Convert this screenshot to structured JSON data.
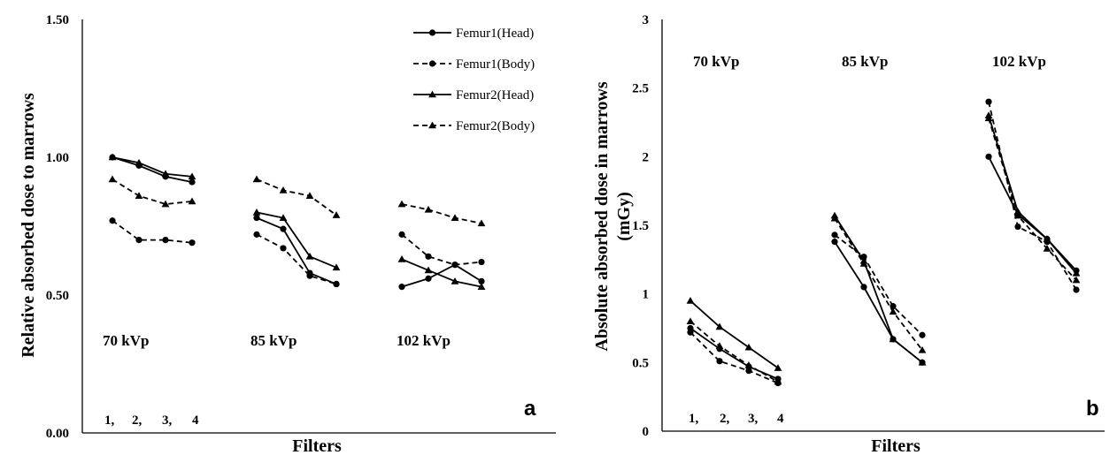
{
  "chart_data": [
    {
      "type": "line",
      "panel_label": "a",
      "ylabel": "Relative absorbed dose to marrows",
      "xlabel": "Filters",
      "ylim": [
        0.0,
        1.5
      ],
      "yticks": [
        "0.00",
        "0.50",
        "1.00",
        "1.50"
      ],
      "filter_labels": [
        "1,",
        "2,",
        "3,",
        "4"
      ],
      "groups": [
        "70 kVp",
        "85 kVp",
        "102 kVp"
      ],
      "legend_position": "top-right",
      "series": [
        {
          "name": "Femur1(Head)",
          "dash": "solid",
          "marker": "circle",
          "values": [
            [
              1.0,
              0.97,
              0.93,
              0.91
            ],
            [
              0.78,
              0.74,
              0.58,
              0.54
            ],
            [
              0.53,
              0.56,
              0.61,
              0.55
            ]
          ]
        },
        {
          "name": "Femur1(Body)",
          "dash": "dashed",
          "marker": "circle",
          "values": [
            [
              0.77,
              0.7,
              0.7,
              0.69
            ],
            [
              0.72,
              0.67,
              0.57,
              0.54
            ],
            [
              0.72,
              0.64,
              0.61,
              0.62
            ]
          ]
        },
        {
          "name": "Femur2(Head)",
          "dash": "solid",
          "marker": "triangle",
          "values": [
            [
              1.0,
              0.98,
              0.94,
              0.93
            ],
            [
              0.8,
              0.78,
              0.64,
              0.6
            ],
            [
              0.63,
              0.59,
              0.55,
              0.53
            ]
          ]
        },
        {
          "name": "Femur2(Body)",
          "dash": "dashed",
          "marker": "triangle",
          "values": [
            [
              0.92,
              0.86,
              0.83,
              0.84
            ],
            [
              0.92,
              0.88,
              0.86,
              0.79
            ],
            [
              0.83,
              0.81,
              0.78,
              0.76
            ]
          ]
        }
      ]
    },
    {
      "type": "line",
      "panel_label": "b",
      "ylabel": "Absolute absorbed dose in marrows (mGy)",
      "ylabel_line1": "Absolute absorbed dose in marrows",
      "ylabel_line2": "(mGy)",
      "xlabel": "Filters",
      "ylim": [
        0,
        3
      ],
      "yticks": [
        "0",
        "0.5",
        "1",
        "1.5",
        "2",
        "2.5",
        "3"
      ],
      "filter_labels": [
        "1,",
        "2,",
        "3,",
        "4"
      ],
      "groups": [
        "70 kVp",
        "85 kVp",
        "102 kVp"
      ],
      "series": [
        {
          "name": "Femur1(Head)",
          "dash": "solid",
          "marker": "circle",
          "values": [
            [
              0.75,
              0.6,
              0.47,
              0.38
            ],
            [
              1.38,
              1.05,
              0.67,
              0.5
            ],
            [
              2.0,
              1.58,
              1.4,
              1.17
            ]
          ]
        },
        {
          "name": "Femur1(Body)",
          "dash": "dashed",
          "marker": "circle",
          "values": [
            [
              0.72,
              0.51,
              0.44,
              0.35
            ],
            [
              1.43,
              1.27,
              0.91,
              0.7
            ],
            [
              2.4,
              1.49,
              1.38,
              1.03
            ]
          ]
        },
        {
          "name": "Femur2(Head)",
          "dash": "solid",
          "marker": "triangle",
          "values": [
            [
              0.95,
              0.76,
              0.61,
              0.46
            ],
            [
              1.57,
              1.24,
              0.67,
              0.5
            ],
            [
              2.3,
              1.6,
              1.4,
              1.15
            ]
          ]
        },
        {
          "name": "Femur2(Body)",
          "dash": "dashed",
          "marker": "triangle",
          "values": [
            [
              0.8,
              0.62,
              0.48,
              0.36
            ],
            [
              1.55,
              1.22,
              0.87,
              0.59
            ],
            [
              2.28,
              1.57,
              1.33,
              1.1
            ]
          ]
        }
      ]
    }
  ]
}
